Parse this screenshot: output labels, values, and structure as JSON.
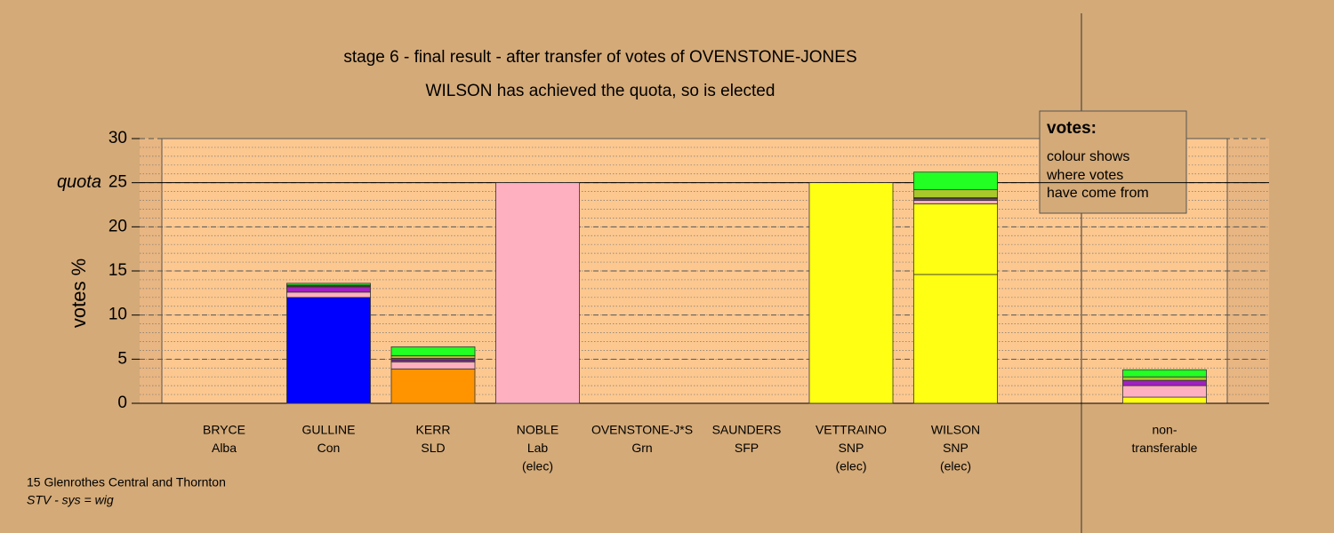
{
  "chart_data": {
    "type": "stacked_bar",
    "title": "stage 6 - final result - after transfer of votes of OVENSTONE-JONES",
    "subtitle": "WILSON has achieved the quota, so is elected",
    "y_label": "votes %",
    "quota": 25,
    "quota_label": "quota",
    "categories": [
      [
        "BRYCE",
        "Alba"
      ],
      [
        "GULLINE",
        "Con"
      ],
      [
        "KERR",
        "SLD"
      ],
      [
        "NOBLE",
        "Lab",
        "(elec)"
      ],
      [
        "OVENSTONE-J*S",
        "Grn"
      ],
      [
        "SAUNDERS",
        "SFP"
      ],
      [
        "VETTRAINO",
        "SNP",
        "(elec)"
      ],
      [
        "WILSON",
        "SNP",
        "(elec)"
      ],
      null,
      [
        "non-",
        "transferable"
      ]
    ],
    "series": [
      {
        "color": "#0000ff",
        "values": [
          0,
          12.0,
          0,
          0,
          0,
          0,
          0,
          0,
          null,
          0
        ]
      },
      {
        "color": "#ff9400",
        "values": [
          0,
          0,
          3.9,
          0,
          0,
          0,
          0,
          0,
          null,
          0
        ]
      },
      {
        "color": "#ffff14",
        "values": [
          0,
          0,
          0,
          0,
          0,
          0,
          25.0,
          14.6,
          null,
          0.7
        ]
      },
      {
        "color": "#ffff14",
        "values": [
          0,
          0,
          0,
          0,
          0,
          0,
          0,
          8.0,
          null,
          0
        ]
      },
      {
        "color": "#ffb0c0",
        "values": [
          0,
          0.6,
          0.8,
          25.0,
          0,
          0,
          0,
          0.4,
          null,
          1.3
        ]
      },
      {
        "color": "#a020c0",
        "values": [
          0,
          0.6,
          0.2,
          0,
          0,
          0,
          0,
          0.2,
          null,
          0.6
        ]
      },
      {
        "color": "#8b4513",
        "values": [
          0,
          0.1,
          0.2,
          0,
          0,
          0,
          0,
          0.1,
          null,
          0
        ]
      },
      {
        "color": "#a8c82a",
        "values": [
          0,
          0.1,
          0.3,
          0,
          0,
          0,
          0,
          0.9,
          null,
          0.4
        ]
      },
      {
        "color": "#22ff22",
        "values": [
          0,
          0.2,
          1.0,
          0,
          0,
          0,
          0,
          2.0,
          null,
          0.8
        ]
      }
    ],
    "ylim": [
      0,
      30
    ],
    "yticks": [
      0,
      5,
      10,
      15,
      20,
      25,
      30
    ],
    "grid": true,
    "legend_title": "votes:",
    "legend_text": [
      "colour shows",
      "where votes",
      "have come from"
    ],
    "footer": "15 Glenrothes Central and Thornton",
    "footer_note": "STV - sys = wig"
  }
}
